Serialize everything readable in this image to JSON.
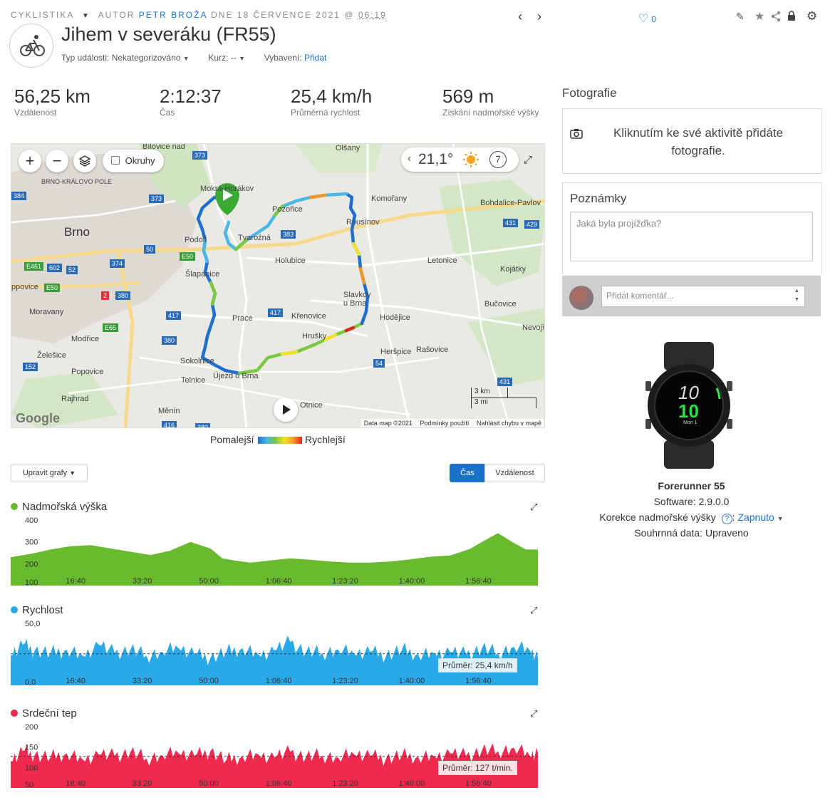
{
  "header": {
    "category": "CYKLISTIKA",
    "author_prefix": "AUTOR",
    "author_name": "PETR BROŽA",
    "date_prefix": "DNE 18 ČERVENCE 2021 @",
    "time": "06:19",
    "title": "Jihem v severáku (FR55)",
    "event_type_label": "Typ události:",
    "event_type_value": "Nekategorizováno",
    "course_label": "Kurz:",
    "course_value": "--",
    "gear_label": "Vybavení:",
    "gear_link": "Přidat",
    "likes": "0"
  },
  "stats": [
    {
      "value": "56,25 km",
      "label": "Vzdálenost"
    },
    {
      "value": "2:12:37",
      "label": "Čas"
    },
    {
      "value": "25,4 km/h",
      "label": "Průměrná rychlost"
    },
    {
      "value": "569 m",
      "label": "Získání nadmořské výšky"
    }
  ],
  "map": {
    "okruhy_label": "Okruhy",
    "temperature": "21,1°",
    "wind": "7",
    "labels": {
      "brno": "Brno",
      "brno_kralovo_pole": "BRNO-KRÁLOVO POLE",
      "bilovice": "Bílovice nad",
      "olsany": "Olšany",
      "mokra": "Mokrá-Horákov",
      "komorany": "Komořany",
      "bohdalice": "Bohdalice-Pavlov",
      "pozoritice": "Pozořice",
      "rousinov": "Rousínov",
      "velatice": "Tvarožná",
      "podoli": "Podolí",
      "holubice": "Holubice",
      "letonice": "Letonice",
      "kojatky": "Kojátky",
      "slapanice": "Šlapanice",
      "pavlovice": "ppovice",
      "slavkov": "Slavkov u Brna",
      "morvany": "Moravany",
      "prace": "Prace",
      "krenovice": "Křenovice",
      "hodejice": "Hodějice",
      "bucovice": "Bučovice",
      "nevojice": "Nevoji",
      "modrice": "Modřice",
      "hrusky": "Hrušky",
      "zelesice": "Želešice",
      "herspice": "Heršpice",
      "rasovice": "Rašovice",
      "sokolnice": "Sokolnice",
      "popovice": "Popovice",
      "telnice": "Telnice",
      "ujezd": "Újezd u Brna",
      "rajhrad": "Rajhrad",
      "menin": "Měnín",
      "otnice": "Otnice"
    },
    "roads": [
      "373",
      "384",
      "373",
      "383",
      "50",
      "E50",
      "E461",
      "602",
      "52",
      "374",
      "E50",
      "2",
      "380",
      "417",
      "417",
      "E65",
      "380",
      "152",
      "416",
      "380",
      "431",
      "429",
      "54",
      "431"
    ],
    "scale_km": "3 km",
    "scale_mi": "3 mi",
    "google": "Google",
    "footer": [
      "Data map ©2021",
      "Podmínky použití",
      "Nahlásit chybu v mapě"
    ]
  },
  "legend": {
    "slower": "Pomalejší",
    "faster": "Rychlejší"
  },
  "controls": {
    "edit_charts": "Upravit grafy",
    "time_tab": "Čas",
    "distance_tab": "Vzdálenost"
  },
  "charts": {
    "x_ticks": [
      "16:40",
      "33:20",
      "50:00",
      "1:06:40",
      "1:23:20",
      "1:40:00",
      "1:56:40"
    ],
    "elevation": {
      "title": "Nadmořská výška",
      "color": "#6aba2e",
      "y_ticks": [
        "400",
        "300",
        "200",
        "100"
      ]
    },
    "speed": {
      "title": "Rychlost",
      "color": "#29a9e8",
      "y_ticks": [
        "50,0",
        "0,0"
      ],
      "avg": "Průměr: 25,4 km/h"
    },
    "heart": {
      "title": "Srdeční tep",
      "color": "#f0294e",
      "y_ticks": [
        "200",
        "150",
        "100",
        "50"
      ],
      "avg": "Průměr: 127 t/min."
    }
  },
  "chart_data": [
    {
      "type": "area",
      "title": "Nadmořská výška",
      "xlabel": "",
      "ylabel": "",
      "x_unit": "minutes",
      "ylim": [
        100,
        400
      ],
      "x": [
        0,
        5,
        10,
        15,
        20,
        25,
        30,
        35,
        40,
        45,
        50,
        53,
        56,
        60,
        65,
        70,
        75,
        80,
        85,
        90,
        95,
        100,
        105,
        110,
        115,
        118,
        122,
        126,
        129,
        132
      ],
      "values": [
        230,
        245,
        265,
        280,
        285,
        270,
        255,
        240,
        260,
        300,
        270,
        225,
        215,
        205,
        215,
        225,
        218,
        210,
        205,
        205,
        210,
        220,
        232,
        238,
        268,
        300,
        340,
        295,
        265,
        265
      ]
    },
    {
      "type": "area",
      "title": "Rychlost",
      "xlabel": "",
      "ylabel": "",
      "x_unit": "minutes",
      "ylim": [
        0,
        50
      ],
      "x": [
        0,
        3,
        6,
        10,
        14,
        18,
        22,
        26,
        30,
        34,
        38,
        42,
        46,
        50,
        54,
        58,
        62,
        66,
        70,
        74,
        78,
        82,
        86,
        90,
        94,
        98,
        102,
        106,
        110,
        114,
        118,
        122,
        126,
        130,
        132
      ],
      "values": [
        24,
        33,
        28,
        26,
        29,
        24,
        33,
        26,
        29,
        24,
        27,
        30,
        25,
        22,
        27,
        30,
        25,
        28,
        35,
        27,
        26,
        29,
        25,
        27,
        24,
        29,
        25,
        26,
        27,
        25,
        30,
        26,
        31,
        28,
        22
      ],
      "average": 25.4
    },
    {
      "type": "area",
      "title": "Srdeční tep",
      "xlabel": "",
      "ylabel": "",
      "x_unit": "minutes",
      "ylim": [
        50,
        200
      ],
      "x": [
        0,
        3,
        6,
        10,
        14,
        18,
        22,
        26,
        30,
        34,
        38,
        42,
        46,
        50,
        54,
        58,
        62,
        66,
        70,
        74,
        78,
        82,
        86,
        90,
        94,
        98,
        102,
        106,
        110,
        114,
        118,
        122,
        126,
        130,
        132
      ],
      "values": [
        115,
        140,
        130,
        125,
        135,
        120,
        132,
        128,
        138,
        122,
        130,
        135,
        128,
        140,
        118,
        128,
        132,
        125,
        138,
        126,
        130,
        124,
        132,
        128,
        122,
        130,
        126,
        128,
        135,
        128,
        142,
        140,
        148,
        128,
        135
      ],
      "average": 127
    }
  ],
  "photos": {
    "title": "Fotografie",
    "text": "Kliknutím ke své aktivitě přidáte fotografie."
  },
  "notes": {
    "title": "Poznámky",
    "placeholder": "Jaká byla projížďka?"
  },
  "comment": {
    "placeholder": "Přidat komentář..."
  },
  "device": {
    "name": "Forerunner 55",
    "software": "Software: 2.9.0.0",
    "elev_label": "Korekce nadmořské výšky",
    "elev_value": "Zapnuto",
    "summary": "Souhrnná data: Upraveno",
    "watch_big": "10",
    "watch_green": "10",
    "watch_date": "Mon 1"
  }
}
